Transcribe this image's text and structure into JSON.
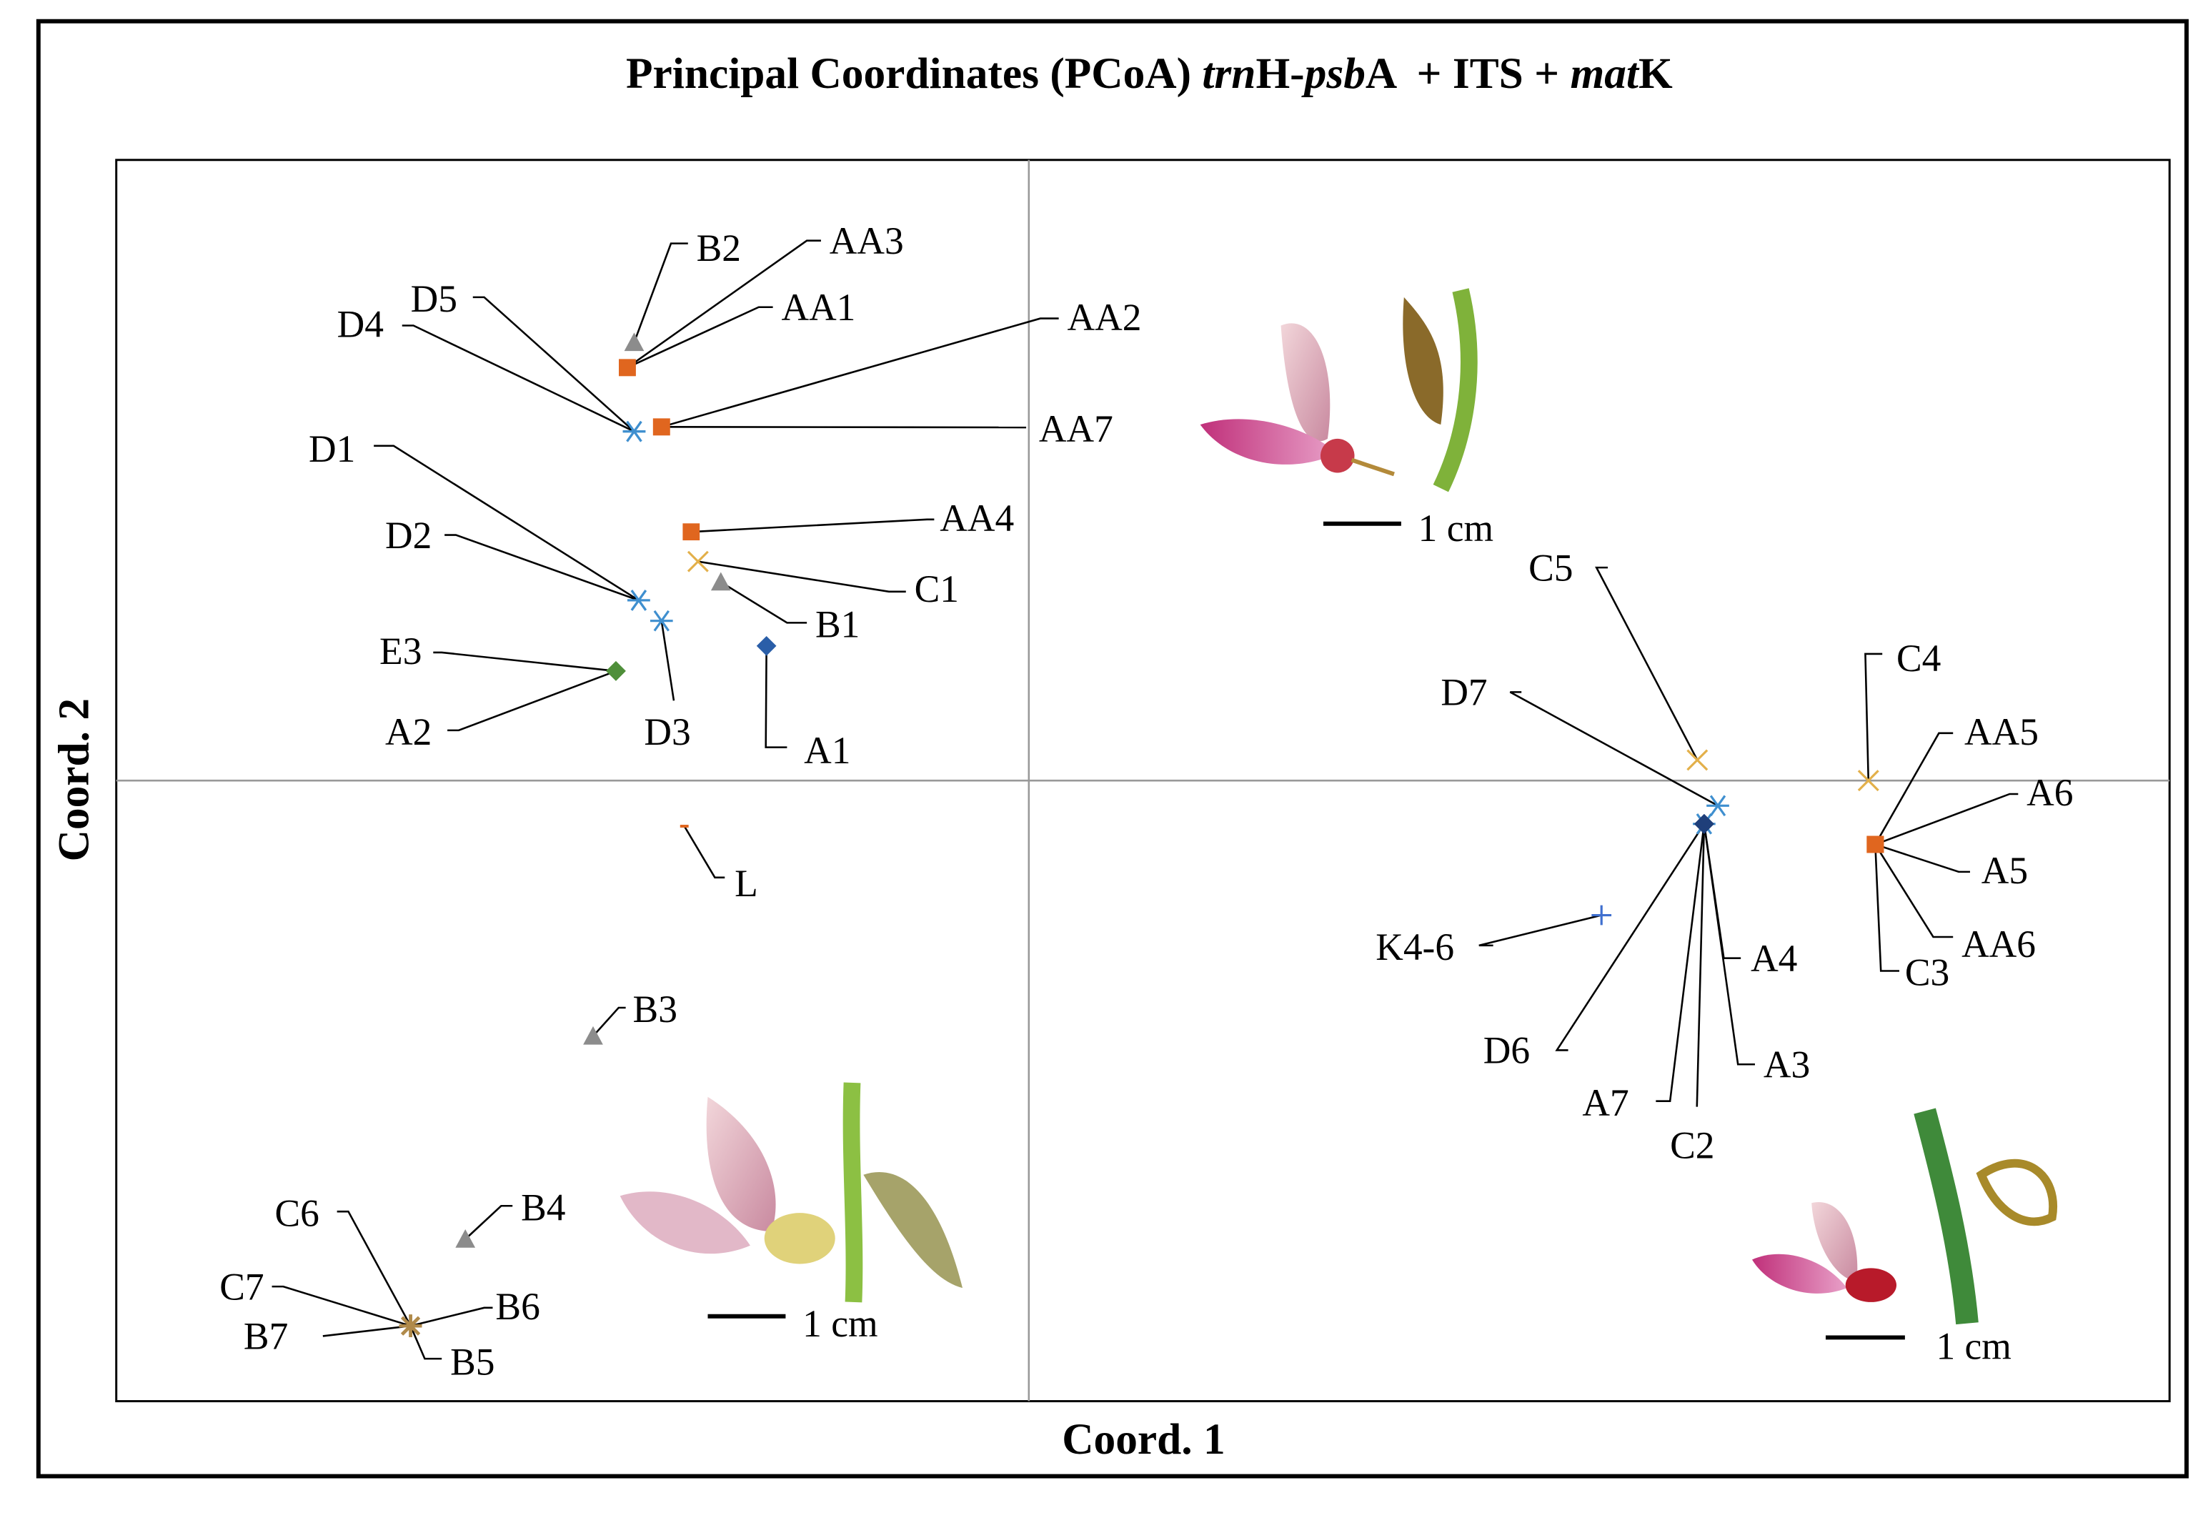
{
  "chart_data": {
    "type": "scatter",
    "title": [
      {
        "text": "Principal Coordinates (PCoA) "
      },
      {
        "text": "trn",
        "italic": true
      },
      {
        "text": "H-"
      },
      {
        "text": "psb",
        "italic": true
      },
      {
        "text": "A  + ITS + "
      },
      {
        "text": "mat",
        "italic": true
      },
      {
        "text": "K"
      }
    ],
    "x_label": "Coord. 1",
    "y_label": "Coord. 2",
    "xlim": [
      -0.4,
      0.5
    ],
    "ylim": [
      -0.272,
      0.272
    ],
    "scale_labels": [
      "1 cm",
      "1 cm",
      "1 cm"
    ],
    "points": [
      {
        "label": "B2",
        "x": -0.173,
        "y": 0.192,
        "marker": "triangle",
        "color": "#8c8c8c"
      },
      {
        "label": "AA3",
        "x": -0.176,
        "y": 0.181,
        "marker": "square",
        "color": "#e0661f"
      },
      {
        "label": "AA1",
        "x": -0.176,
        "y": 0.181,
        "marker": "square",
        "color": "#e0661f"
      },
      {
        "label": "AA2",
        "x": -0.161,
        "y": 0.155,
        "marker": "square",
        "color": "#e0661f"
      },
      {
        "label": "AA7",
        "x": -0.161,
        "y": 0.155,
        "marker": "square",
        "color": "#e0661f"
      },
      {
        "label": "D4",
        "x": -0.173,
        "y": 0.153,
        "marker": "asterisk",
        "color": "#3f8fcf"
      },
      {
        "label": "D5",
        "x": -0.173,
        "y": 0.153,
        "marker": "asterisk",
        "color": "#3f8fcf"
      },
      {
        "label": "D1",
        "x": -0.171,
        "y": 0.079,
        "marker": "asterisk",
        "color": "#3f8fcf"
      },
      {
        "label": "D2",
        "x": -0.171,
        "y": 0.079,
        "marker": "asterisk",
        "color": "#3f8fcf"
      },
      {
        "label": "D3",
        "x": -0.161,
        "y": 0.07,
        "marker": "asterisk",
        "color": "#3f8fcf"
      },
      {
        "label": "E3",
        "x": -0.181,
        "y": 0.048,
        "marker": "diamond",
        "color": "#4f8f3a"
      },
      {
        "label": "A2",
        "x": -0.181,
        "y": 0.048,
        "marker": "diamond",
        "color": "#4f8f3a"
      },
      {
        "label": "A1",
        "x": -0.115,
        "y": 0.059,
        "marker": "diamond",
        "color": "#2a5ea8"
      },
      {
        "label": "C1",
        "x": -0.145,
        "y": 0.096,
        "marker": "x",
        "color": "#e3b04a"
      },
      {
        "label": "B1",
        "x": -0.135,
        "y": 0.087,
        "marker": "triangle",
        "color": "#8c8c8c"
      },
      {
        "label": "AA4",
        "x": -0.148,
        "y": 0.109,
        "marker": "square",
        "color": "#e0661f"
      },
      {
        "label": "L",
        "x": -0.151,
        "y": -0.02,
        "marker": "dash",
        "color": "#e0661f"
      },
      {
        "label": "B3",
        "x": -0.191,
        "y": -0.112,
        "marker": "triangle",
        "color": "#8c8c8c"
      },
      {
        "label": "B4",
        "x": -0.247,
        "y": -0.201,
        "marker": "triangle",
        "color": "#8c8c8c"
      },
      {
        "label": "C6",
        "x": -0.271,
        "y": -0.239,
        "marker": "star",
        "color": "#b08a4a"
      },
      {
        "label": "C7",
        "x": -0.271,
        "y": -0.239,
        "marker": "star",
        "color": "#b08a4a"
      },
      {
        "label": "B7",
        "x": -0.271,
        "y": -0.239,
        "marker": "star",
        "color": "#b08a4a"
      },
      {
        "label": "B5",
        "x": -0.271,
        "y": -0.239,
        "marker": "star",
        "color": "#b08a4a"
      },
      {
        "label": "B6",
        "x": -0.271,
        "y": -0.239,
        "marker": "star",
        "color": "#b08a4a"
      },
      {
        "label": "C5",
        "x": 0.293,
        "y": 0.009,
        "marker": "x",
        "color": "#e3b04a"
      },
      {
        "label": "D7",
        "x": 0.302,
        "y": -0.011,
        "marker": "asterisk",
        "color": "#3f8fcf"
      },
      {
        "label": "D6",
        "x": 0.296,
        "y": -0.019,
        "marker": "asterisk",
        "color": "#3f8fcf"
      },
      {
        "label": "A7",
        "x": 0.296,
        "y": -0.019,
        "marker": "diamond",
        "color": "#1f3f7a"
      },
      {
        "label": "C2",
        "x": 0.296,
        "y": -0.019,
        "marker": "diamond",
        "color": "#1f3f7a"
      },
      {
        "label": "A3",
        "x": 0.296,
        "y": -0.019,
        "marker": "diamond",
        "color": "#1f3f7a"
      },
      {
        "label": "A4",
        "x": 0.296,
        "y": -0.019,
        "marker": "diamond",
        "color": "#1f3f7a"
      },
      {
        "label": "C4",
        "x": 0.368,
        "y": 0.0,
        "marker": "x",
        "color": "#e3b04a"
      },
      {
        "label": "AA5",
        "x": 0.371,
        "y": -0.028,
        "marker": "square",
        "color": "#e0661f"
      },
      {
        "label": "A6",
        "x": 0.371,
        "y": -0.028,
        "marker": "square",
        "color": "#e0661f"
      },
      {
        "label": "A5",
        "x": 0.371,
        "y": -0.028,
        "marker": "square",
        "color": "#e0661f"
      },
      {
        "label": "AA6",
        "x": 0.371,
        "y": -0.028,
        "marker": "square",
        "color": "#e0661f"
      },
      {
        "label": "C3",
        "x": 0.371,
        "y": -0.028,
        "marker": "square",
        "color": "#e0661f"
      },
      {
        "label": "K4-6",
        "x": 0.251,
        "y": -0.059,
        "marker": "plus",
        "color": "#3f6fcf"
      }
    ]
  }
}
